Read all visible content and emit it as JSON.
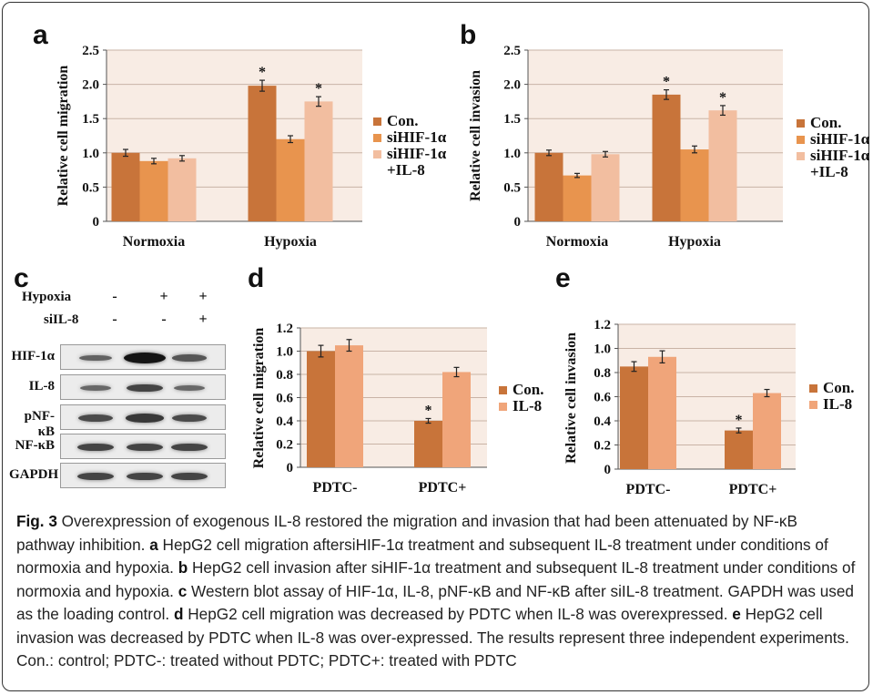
{
  "figure": {
    "caption_label": "Fig. 3",
    "caption_parts": [
      {
        "t": " Overexpression of exogenous IL-8 restored the migration and invasion that had been attenuated by NF-κB pathway inhibition. ",
        "b": false
      },
      {
        "t": "a",
        "b": true
      },
      {
        "t": " HepG2 cell migration aftersiHIF-1α treatment and subsequent IL-8 treatment under conditions of normoxia and hypoxia. ",
        "b": false
      },
      {
        "t": "b",
        "b": true
      },
      {
        "t": " HepG2 cell invasion after siHIF-1α treatment and subsequent IL-8 treatment under conditions of normoxia and hypoxia. ",
        "b": false
      },
      {
        "t": "c",
        "b": true
      },
      {
        "t": " Western blot assay of HIF-1α, IL-8, pNF-κB and NF-κB after siIL-8 treatment. GAPDH was used as the loading control. ",
        "b": false
      },
      {
        "t": "d",
        "b": true
      },
      {
        "t": " HepG2 cell migration was decreased by PDTC when IL-8 was overexpressed. ",
        "b": false
      },
      {
        "t": "e",
        "b": true
      },
      {
        "t": " HepG2 cell invasion was decreased by PDTC when IL-8 was over-expressed. The results represent three independent experiments. Con.: control; PDTC-: treated without PDTC; PDTC+: treated with PDTC",
        "b": false
      }
    ]
  },
  "panel_c": {
    "letter": "c",
    "headers": [
      {
        "label": "Hypoxia",
        "marks": [
          "-",
          "+",
          "+"
        ]
      },
      {
        "label": "siIL-8",
        "marks": [
          "-",
          "-",
          "+"
        ]
      }
    ],
    "blots": [
      {
        "label": "HIF-1α",
        "intensity": [
          0.35,
          1.0,
          0.45
        ]
      },
      {
        "label": "IL-8",
        "intensity": [
          0.3,
          0.6,
          0.3
        ]
      },
      {
        "label": "pNF-κB",
        "intensity": [
          0.55,
          0.7,
          0.55
        ]
      },
      {
        "label": "NF-κB",
        "intensity": [
          0.6,
          0.6,
          0.6
        ]
      },
      {
        "label": "GAPDH",
        "intensity": [
          0.6,
          0.6,
          0.6
        ]
      }
    ]
  },
  "colors": {
    "con": "#c8743a",
    "series2": "#e8944e",
    "series3": "#f2bea0",
    "il8": "#f0a57a",
    "plot_bg": "#f8ece4",
    "grid": "#c9b3a6"
  },
  "chart_data": [
    {
      "id": "a",
      "letter": "a",
      "type": "bar",
      "categories": [
        "Normoxia",
        "Hypoxia"
      ],
      "ylabel": "Relative cell migration",
      "ylim": [
        0,
        2.5
      ],
      "yticks": [
        "0",
        "0.5",
        "1.0",
        "1.5",
        "2.0",
        "2.5"
      ],
      "grid": true,
      "series": [
        {
          "name": "Con.",
          "values": [
            1.0,
            1.98
          ],
          "errors": [
            0.05,
            0.08
          ]
        },
        {
          "name": "siHIF-1α",
          "values": [
            0.88,
            1.2
          ],
          "errors": [
            0.04,
            0.05
          ]
        },
        {
          "name": "siHIF-1α +IL-8",
          "values": [
            0.92,
            1.75
          ],
          "errors": [
            0.04,
            0.07
          ]
        }
      ],
      "annotations": [
        {
          "text": "*",
          "category": "Hypoxia",
          "series": "Con."
        },
        {
          "text": "*",
          "category": "Hypoxia",
          "series": "siHIF-1α +IL-8"
        }
      ],
      "legend": {
        "position": "right",
        "lines": [
          [
            "Con."
          ],
          [
            "siHIF-1α"
          ],
          [
            "siHIF-1α",
            "+IL-8"
          ]
        ]
      }
    },
    {
      "id": "b",
      "letter": "b",
      "type": "bar",
      "categories": [
        "Normoxia",
        "Hypoxia"
      ],
      "ylabel": "Relative cell invasion",
      "ylim": [
        0,
        2.5
      ],
      "yticks": [
        "0",
        "0.5",
        "1.0",
        "1.5",
        "2.0",
        "2.5"
      ],
      "grid": true,
      "series": [
        {
          "name": "Con.",
          "values": [
            1.0,
            1.85
          ],
          "errors": [
            0.04,
            0.07
          ]
        },
        {
          "name": "siHIF-1α",
          "values": [
            0.67,
            1.05
          ],
          "errors": [
            0.03,
            0.05
          ]
        },
        {
          "name": "siHIF-1α +IL-8",
          "values": [
            0.98,
            1.62
          ],
          "errors": [
            0.04,
            0.07
          ]
        }
      ],
      "annotations": [
        {
          "text": "*",
          "category": "Hypoxia",
          "series": "Con."
        },
        {
          "text": "*",
          "category": "Hypoxia",
          "series": "siHIF-1α +IL-8"
        }
      ],
      "legend": {
        "position": "right",
        "lines": [
          [
            "Con."
          ],
          [
            "siHIF-1α"
          ],
          [
            "siHIF-1α",
            "+IL-8"
          ]
        ]
      }
    },
    {
      "id": "d",
      "letter": "d",
      "type": "bar",
      "categories": [
        "PDTC-",
        "PDTC+"
      ],
      "ylabel": "Relative cell migration",
      "ylim": [
        0,
        1.2
      ],
      "yticks": [
        "0",
        "0.2",
        "0.4",
        "0.6",
        "0.8",
        "1.0",
        "1.2"
      ],
      "grid": true,
      "series": [
        {
          "name": "Con.",
          "values": [
            1.0,
            0.4
          ],
          "errors": [
            0.05,
            0.02
          ]
        },
        {
          "name": "IL-8",
          "values": [
            1.05,
            0.82
          ],
          "errors": [
            0.05,
            0.04
          ]
        }
      ],
      "annotations": [
        {
          "text": "*",
          "category": "PDTC+",
          "series": "Con."
        }
      ],
      "legend": {
        "position": "right",
        "lines": [
          [
            "Con."
          ],
          [
            "IL-8"
          ]
        ]
      }
    },
    {
      "id": "e",
      "letter": "e",
      "type": "bar",
      "categories": [
        "PDTC-",
        "PDTC+"
      ],
      "ylabel": "Relative cell invasion",
      "ylim": [
        0,
        1.2
      ],
      "yticks": [
        "0",
        "0.2",
        "0.4",
        "0.6",
        "0.8",
        "1.0",
        "1.2"
      ],
      "grid": true,
      "series": [
        {
          "name": "Con.",
          "values": [
            0.85,
            0.32
          ],
          "errors": [
            0.04,
            0.02
          ]
        },
        {
          "name": "IL-8",
          "values": [
            0.93,
            0.63
          ],
          "errors": [
            0.05,
            0.03
          ]
        }
      ],
      "annotations": [
        {
          "text": "*",
          "category": "PDTC+",
          "series": "Con."
        }
      ],
      "legend": {
        "position": "right",
        "lines": [
          [
            "Con."
          ],
          [
            "IL-8"
          ]
        ]
      }
    }
  ]
}
